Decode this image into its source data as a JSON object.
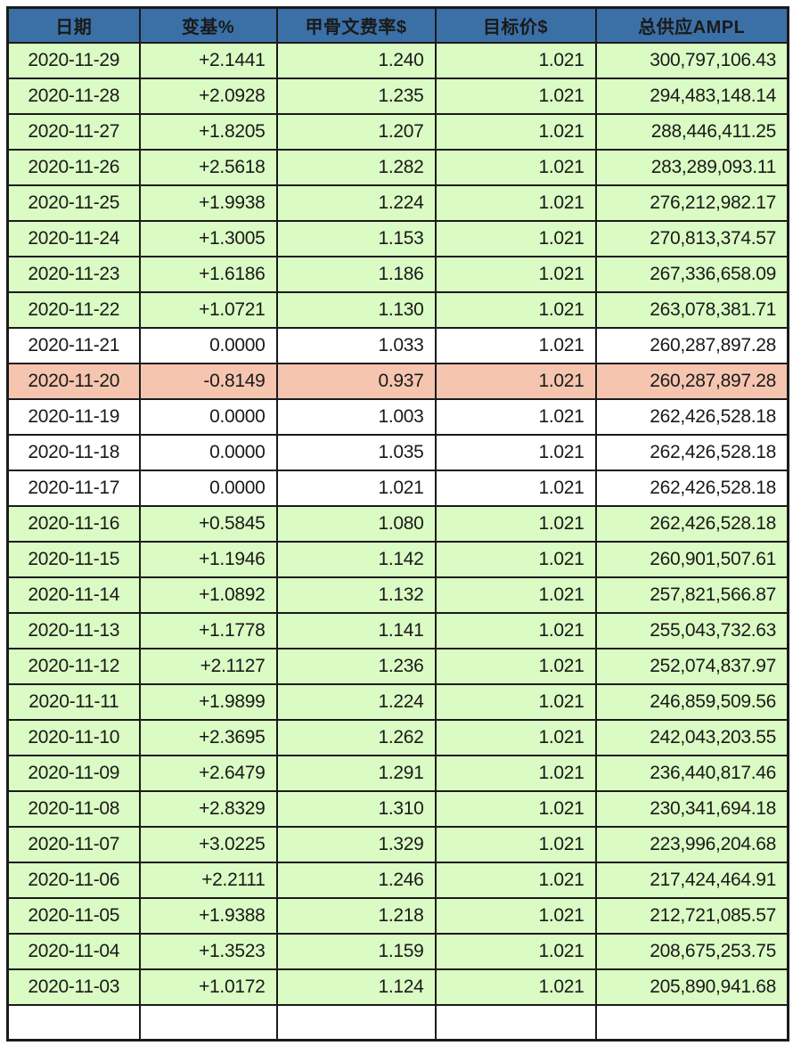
{
  "chart_data": {
    "type": "table",
    "columns": [
      "日期",
      "变基%",
      "甲骨文费率$",
      "目标价$",
      "总供应AMPL"
    ],
    "column_keys": [
      "date",
      "rebase",
      "oracle_rate",
      "target_price",
      "total_supply"
    ],
    "rows": [
      {
        "date": "2020-11-29",
        "rebase": "+2.1441",
        "oracle_rate": "1.240",
        "target_price": "1.021",
        "total_supply": "300,797,106.43",
        "tone": "positive"
      },
      {
        "date": "2020-11-28",
        "rebase": "+2.0928",
        "oracle_rate": "1.235",
        "target_price": "1.021",
        "total_supply": "294,483,148.14",
        "tone": "positive"
      },
      {
        "date": "2020-11-27",
        "rebase": "+1.8205",
        "oracle_rate": "1.207",
        "target_price": "1.021",
        "total_supply": "288,446,411.25",
        "tone": "positive"
      },
      {
        "date": "2020-11-26",
        "rebase": "+2.5618",
        "oracle_rate": "1.282",
        "target_price": "1.021",
        "total_supply": "283,289,093.11",
        "tone": "positive"
      },
      {
        "date": "2020-11-25",
        "rebase": "+1.9938",
        "oracle_rate": "1.224",
        "target_price": "1.021",
        "total_supply": "276,212,982.17",
        "tone": "positive"
      },
      {
        "date": "2020-11-24",
        "rebase": "+1.3005",
        "oracle_rate": "1.153",
        "target_price": "1.021",
        "total_supply": "270,813,374.57",
        "tone": "positive"
      },
      {
        "date": "2020-11-23",
        "rebase": "+1.6186",
        "oracle_rate": "1.186",
        "target_price": "1.021",
        "total_supply": "267,336,658.09",
        "tone": "positive"
      },
      {
        "date": "2020-11-22",
        "rebase": "+1.0721",
        "oracle_rate": "1.130",
        "target_price": "1.021",
        "total_supply": "263,078,381.71",
        "tone": "positive"
      },
      {
        "date": "2020-11-21",
        "rebase": "0.0000",
        "oracle_rate": "1.033",
        "target_price": "1.021",
        "total_supply": "260,287,897.28",
        "tone": "zero"
      },
      {
        "date": "2020-11-20",
        "rebase": "-0.8149",
        "oracle_rate": "0.937",
        "target_price": "1.021",
        "total_supply": "260,287,897.28",
        "tone": "negative"
      },
      {
        "date": "2020-11-19",
        "rebase": "0.0000",
        "oracle_rate": "1.003",
        "target_price": "1.021",
        "total_supply": "262,426,528.18",
        "tone": "zero"
      },
      {
        "date": "2020-11-18",
        "rebase": "0.0000",
        "oracle_rate": "1.035",
        "target_price": "1.021",
        "total_supply": "262,426,528.18",
        "tone": "zero"
      },
      {
        "date": "2020-11-17",
        "rebase": "0.0000",
        "oracle_rate": "1.021",
        "target_price": "1.021",
        "total_supply": "262,426,528.18",
        "tone": "zero"
      },
      {
        "date": "2020-11-16",
        "rebase": "+0.5845",
        "oracle_rate": "1.080",
        "target_price": "1.021",
        "total_supply": "262,426,528.18",
        "tone": "positive"
      },
      {
        "date": "2020-11-15",
        "rebase": "+1.1946",
        "oracle_rate": "1.142",
        "target_price": "1.021",
        "total_supply": "260,901,507.61",
        "tone": "positive"
      },
      {
        "date": "2020-11-14",
        "rebase": "+1.0892",
        "oracle_rate": "1.132",
        "target_price": "1.021",
        "total_supply": "257,821,566.87",
        "tone": "positive"
      },
      {
        "date": "2020-11-13",
        "rebase": "+1.1778",
        "oracle_rate": "1.141",
        "target_price": "1.021",
        "total_supply": "255,043,732.63",
        "tone": "positive"
      },
      {
        "date": "2020-11-12",
        "rebase": "+2.1127",
        "oracle_rate": "1.236",
        "target_price": "1.021",
        "total_supply": "252,074,837.97",
        "tone": "positive"
      },
      {
        "date": "2020-11-11",
        "rebase": "+1.9899",
        "oracle_rate": "1.224",
        "target_price": "1.021",
        "total_supply": "246,859,509.56",
        "tone": "positive"
      },
      {
        "date": "2020-11-10",
        "rebase": "+2.3695",
        "oracle_rate": "1.262",
        "target_price": "1.021",
        "total_supply": "242,043,203.55",
        "tone": "positive"
      },
      {
        "date": "2020-11-09",
        "rebase": "+2.6479",
        "oracle_rate": "1.291",
        "target_price": "1.021",
        "total_supply": "236,440,817.46",
        "tone": "positive"
      },
      {
        "date": "2020-11-08",
        "rebase": "+2.8329",
        "oracle_rate": "1.310",
        "target_price": "1.021",
        "total_supply": "230,341,694.18",
        "tone": "positive"
      },
      {
        "date": "2020-11-07",
        "rebase": "+3.0225",
        "oracle_rate": "1.329",
        "target_price": "1.021",
        "total_supply": "223,996,204.68",
        "tone": "positive"
      },
      {
        "date": "2020-11-06",
        "rebase": "+2.2111",
        "oracle_rate": "1.246",
        "target_price": "1.021",
        "total_supply": "217,424,464.91",
        "tone": "positive"
      },
      {
        "date": "2020-11-05",
        "rebase": "+1.9388",
        "oracle_rate": "1.218",
        "target_price": "1.021",
        "total_supply": "212,721,085.57",
        "tone": "positive"
      },
      {
        "date": "2020-11-04",
        "rebase": "+1.3523",
        "oracle_rate": "1.159",
        "target_price": "1.021",
        "total_supply": "208,675,253.75",
        "tone": "positive"
      },
      {
        "date": "2020-11-03",
        "rebase": "+1.0172",
        "oracle_rate": "1.124",
        "target_price": "1.021",
        "total_supply": "205,890,941.68",
        "tone": "positive"
      }
    ],
    "partial_row_visible": true,
    "legend_position": "none",
    "grid": true
  },
  "colors": {
    "header_bg": "#3B70A6",
    "positive_bg": "#DAFBC3",
    "negative_bg": "#F5C5B0",
    "zero_bg": "#FFFFFF",
    "border": "#1B1B1B",
    "text": "#1A1A1A"
  }
}
